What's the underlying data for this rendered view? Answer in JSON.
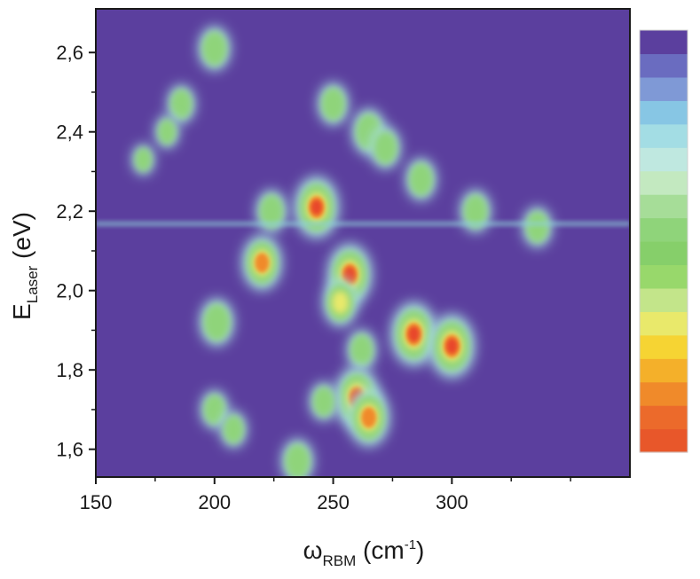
{
  "chart_data": {
    "type": "heatmap",
    "title": "",
    "xlabel": {
      "symbol": "ω",
      "subscript": "RBM",
      "unit_prefix": " (cm",
      "unit_superscript": "-1",
      "unit_suffix": ")"
    },
    "ylabel": {
      "symbol": "E",
      "subscript": "Laser",
      "unit": " (eV)"
    },
    "xlim": [
      150,
      375
    ],
    "ylim": [
      1.53,
      2.71
    ],
    "x_major_ticks": [
      150,
      200,
      250,
      300
    ],
    "x_tick_labels": [
      "150",
      "200",
      "250",
      "300"
    ],
    "x_minor_ticks": [
      175,
      225,
      275,
      325,
      350
    ],
    "y_major_ticks": [
      1.6,
      1.8,
      2.0,
      2.2,
      2.4,
      2.6
    ],
    "y_tick_labels": [
      "1,6",
      "1,8",
      "2,0",
      "2,2",
      "2,4",
      "2,6"
    ],
    "y_minor_ticks": [
      1.7,
      1.9,
      2.1,
      2.3,
      2.5
    ],
    "grid": false,
    "legend": "colorbar-right, no tick labels",
    "background_color": "#5b3f9e",
    "colorbar": [
      "#e8572a",
      "#ec6a2b",
      "#f08a2a",
      "#f4b02a",
      "#f6d433",
      "#e9e96b",
      "#c3e58a",
      "#98d86b",
      "#86cf6a",
      "#8fd47a",
      "#a6dd98",
      "#c3e9c0",
      "#bfe8e0",
      "#a3dde4",
      "#87c6e4",
      "#7f99d6",
      "#6a6cc0",
      "#5b3f9e"
    ],
    "resonances": [
      {
        "omega": 200,
        "energy": 2.61,
        "intensity": 0.5
      },
      {
        "omega": 186,
        "energy": 2.47,
        "intensity": 0.35
      },
      {
        "omega": 180,
        "energy": 2.4,
        "intensity": 0.2
      },
      {
        "omega": 170,
        "energy": 2.33,
        "intensity": 0.15
      },
      {
        "omega": 201,
        "energy": 1.92,
        "intensity": 0.58
      },
      {
        "omega": 220,
        "energy": 2.07,
        "intensity": 0.78
      },
      {
        "omega": 224,
        "energy": 2.2,
        "intensity": 0.45
      },
      {
        "omega": 243,
        "energy": 2.21,
        "intensity": 0.95
      },
      {
        "omega": 250,
        "energy": 2.47,
        "intensity": 0.45
      },
      {
        "omega": 265,
        "energy": 2.4,
        "intensity": 0.55
      },
      {
        "omega": 272,
        "energy": 2.36,
        "intensity": 0.45
      },
      {
        "omega": 257,
        "energy": 2.04,
        "intensity": 0.95
      },
      {
        "omega": 253,
        "energy": 1.97,
        "intensity": 0.6
      },
      {
        "omega": 262,
        "energy": 1.85,
        "intensity": 0.4
      },
      {
        "omega": 284,
        "energy": 1.89,
        "intensity": 1.0
      },
      {
        "omega": 300,
        "energy": 1.86,
        "intensity": 1.0
      },
      {
        "omega": 260,
        "energy": 1.73,
        "intensity": 0.95
      },
      {
        "omega": 265,
        "energy": 1.68,
        "intensity": 0.85
      },
      {
        "omega": 246,
        "energy": 1.72,
        "intensity": 0.35
      },
      {
        "omega": 287,
        "energy": 2.28,
        "intensity": 0.45
      },
      {
        "omega": 310,
        "energy": 2.2,
        "intensity": 0.45
      },
      {
        "omega": 336,
        "energy": 2.16,
        "intensity": 0.4
      },
      {
        "omega": 235,
        "energy": 1.57,
        "intensity": 0.5
      },
      {
        "omega": 200,
        "energy": 1.7,
        "intensity": 0.35
      },
      {
        "omega": 208,
        "energy": 1.65,
        "intensity": 0.3
      }
    ]
  }
}
